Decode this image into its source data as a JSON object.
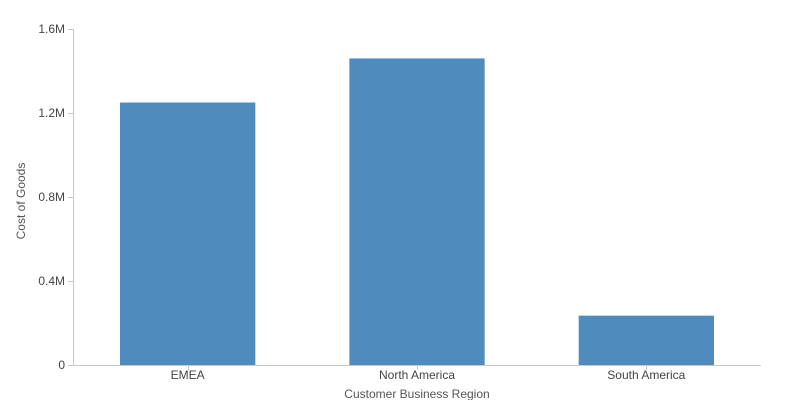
{
  "chart_data": {
    "type": "bar",
    "categories": [
      "EMEA",
      "North America",
      "South America"
    ],
    "values": [
      1250000,
      1460000,
      235000
    ],
    "title": "",
    "xlabel": "Customer Business Region",
    "ylabel": "Cost of Goods",
    "ylim": [
      0,
      1600000
    ],
    "yticks": [
      {
        "value": 0,
        "label": "0"
      },
      {
        "value": 400000,
        "label": "0.4M"
      },
      {
        "value": 800000,
        "label": "0.8M"
      },
      {
        "value": 1200000,
        "label": "1.2M"
      },
      {
        "value": 1600000,
        "label": "1.6M"
      }
    ],
    "grid": false,
    "legend": "none",
    "bar_color": "#508bbd"
  }
}
